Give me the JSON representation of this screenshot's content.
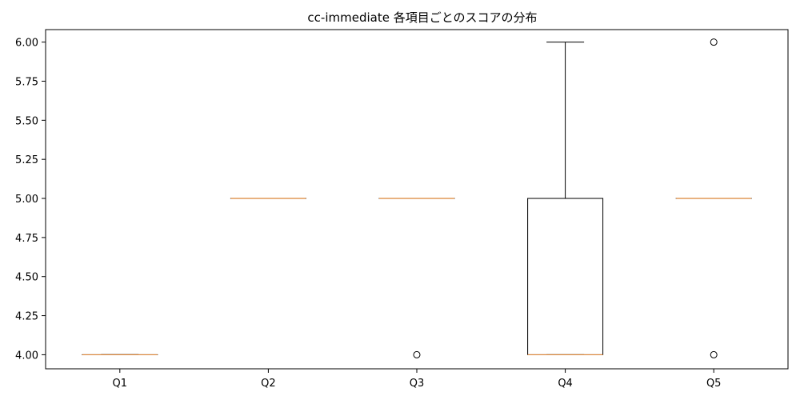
{
  "chart_data": {
    "type": "boxplot",
    "title": "cc-immediate 各項目ごとのスコアの分布",
    "xlabel": "",
    "ylabel": "",
    "categories": [
      "Q1",
      "Q2",
      "Q3",
      "Q4",
      "Q5"
    ],
    "ylim": [
      3.91,
      6.08
    ],
    "yticks": [
      4.0,
      4.25,
      4.5,
      4.75,
      5.0,
      5.25,
      5.5,
      5.75,
      6.0
    ],
    "ytick_labels": [
      "4.00",
      "4.25",
      "4.50",
      "4.75",
      "5.00",
      "5.25",
      "5.50",
      "5.75",
      "6.00"
    ],
    "grid": false,
    "boxes": [
      {
        "category": "Q1",
        "whisker_low": 4.0,
        "q1": 4.0,
        "median": 4.0,
        "q3": 4.0,
        "whisker_high": 4.0,
        "outliers": []
      },
      {
        "category": "Q2",
        "whisker_low": 5.0,
        "q1": 5.0,
        "median": 5.0,
        "q3": 5.0,
        "whisker_high": 5.0,
        "outliers": []
      },
      {
        "category": "Q3",
        "whisker_low": 5.0,
        "q1": 5.0,
        "median": 5.0,
        "q3": 5.0,
        "whisker_high": 5.0,
        "outliers": [
          4.0
        ]
      },
      {
        "category": "Q4",
        "whisker_low": 4.0,
        "q1": 4.0,
        "median": 4.0,
        "q3": 5.0,
        "whisker_high": 6.0,
        "outliers": []
      },
      {
        "category": "Q5",
        "whisker_low": 5.0,
        "q1": 5.0,
        "median": 5.0,
        "q3": 5.0,
        "whisker_high": 5.0,
        "outliers": [
          6.0,
          4.0
        ]
      }
    ],
    "colors": {
      "box": "#000000",
      "median": "#e08a3c",
      "outlier": "#000000"
    }
  }
}
